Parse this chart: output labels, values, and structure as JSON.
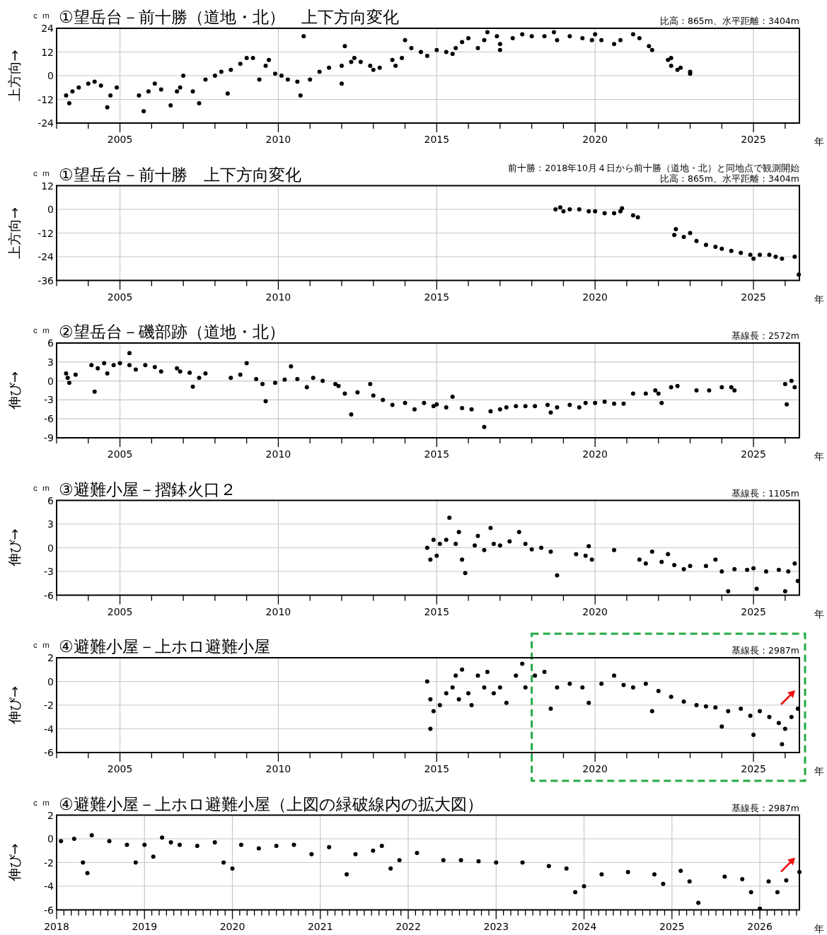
{
  "chart_data": [
    {
      "type": "scatter",
      "title": "①望岳台－前十勝（道地・北）　上下方向変化",
      "ylabel": "上方向→",
      "xlabel": "年",
      "annotations": [
        "ｃｍ",
        "比高：865m、水平距離：3404m"
      ],
      "xlim": [
        2003,
        2026.45
      ],
      "xticks": [
        {
          "value": 2003,
          "label": null
        },
        {
          "value": 2004,
          "label": null
        },
        2005,
        {
          "value": 2006,
          "label": null
        },
        {
          "value": 2007,
          "label": null
        },
        {
          "value": 2008,
          "label": null
        },
        {
          "value": 2009,
          "label": null
        },
        2010,
        {
          "value": 2011,
          "label": null
        },
        {
          "value": 2012,
          "label": null
        },
        {
          "value": 2013,
          "label": null
        },
        {
          "value": 2014,
          "label": null
        },
        2015,
        {
          "value": 2016,
          "label": null
        },
        {
          "value": 2017,
          "label": null
        },
        {
          "value": 2018,
          "label": null
        },
        {
          "value": 2019,
          "label": null
        },
        2020,
        {
          "value": 2021,
          "label": null
        },
        {
          "value": 2022,
          "label": null
        },
        {
          "value": 2023,
          "label": null
        },
        {
          "value": 2024,
          "label": null
        },
        2025,
        {
          "value": 2026,
          "label": null
        }
      ],
      "ylim": [
        -24,
        24
      ],
      "yticks": [
        -24,
        -12,
        0,
        12,
        24
      ],
      "grid": true,
      "marker": "circle",
      "series": [
        {
          "color": "#000000",
          "x": [
            2003.3,
            2003.4,
            2003.5,
            2003.7,
            2004.0,
            2004.2,
            2004.4,
            2004.6,
            2004.7,
            2004.9,
            2005.6,
            2005.75,
            2005.9,
            2006.1,
            2006.3,
            2006.6,
            2006.8,
            2006.9,
            2007.0,
            2007.3,
            2007.5,
            2007.7,
            2008.0,
            2008.2,
            2008.4,
            2008.5,
            2008.8,
            2009.0,
            2009.2,
            2009.4,
            2009.6,
            2009.7,
            2009.9,
            2010.1,
            2010.3,
            2010.6,
            2010.7,
            2010.8,
            2011.0,
            2011.3,
            2011.6,
            2012.0,
            2012.0,
            2012.1,
            2012.3,
            2012.4,
            2012.6,
            2012.9,
            2013.0,
            2013.2,
            2013.6,
            2013.7,
            2013.9,
            2014.0,
            2014.2,
            2014.5,
            2014.7,
            2015.0,
            2015.3,
            2015.5,
            2015.6,
            2015.8,
            2016.0,
            2016.3,
            2016.5,
            2016.6,
            2016.9,
            2017.0,
            2017.0,
            2017.4,
            2017.7,
            2018.0,
            2018.4,
            2018.7,
            2018.8,
            2019.2,
            2019.6,
            2019.9,
            2020.0,
            2020.2,
            2020.6,
            2020.8,
            2021.2,
            2021.4,
            2021.7,
            2021.8,
            2022.3,
            2022.4,
            2022.4,
            2022.6,
            2022.7,
            2023.0,
            2023.0
          ],
          "values": [
            -10,
            -14,
            -8,
            -6,
            -4,
            -3,
            -5,
            -16,
            -10,
            -6,
            -10,
            -18,
            -8,
            -4,
            -7,
            -15,
            -8,
            -6,
            0,
            -8,
            -14,
            -2,
            0,
            2,
            -9,
            3,
            6,
            9,
            9,
            -2,
            5,
            8,
            1,
            0,
            -2,
            -3,
            -10,
            20,
            -2,
            2,
            4,
            5,
            -4,
            15,
            7,
            9,
            7,
            5,
            3,
            4,
            8,
            5,
            9,
            18,
            14,
            12,
            10,
            13,
            12,
            11,
            14,
            17,
            19,
            14,
            18,
            22,
            20,
            16,
            13,
            19,
            21,
            20,
            20,
            22,
            18,
            20,
            19,
            18,
            21,
            18,
            16,
            18,
            21,
            19,
            15,
            13,
            8,
            5,
            9,
            3,
            4,
            2,
            1
          ]
        }
      ]
    },
    {
      "type": "scatter",
      "title": "①望岳台－前十勝　上下方向変化",
      "ylabel": "上方向→",
      "xlabel": "年",
      "annotations": [
        "ｃｍ",
        "前十勝：2018年10月４日から前十勝（道地・北）と同地点で観測開始",
        "比高：865m、水平距離：3404m"
      ],
      "xlim": [
        2003,
        2026.45
      ],
      "xticks": [
        {
          "value": 2003,
          "label": null
        },
        {
          "value": 2004,
          "label": null
        },
        2005,
        {
          "value": 2006,
          "label": null
        },
        {
          "value": 2007,
          "label": null
        },
        {
          "value": 2008,
          "label": null
        },
        {
          "value": 2009,
          "label": null
        },
        2010,
        {
          "value": 2011,
          "label": null
        },
        {
          "value": 2012,
          "label": null
        },
        {
          "value": 2013,
          "label": null
        },
        {
          "value": 2014,
          "label": null
        },
        2015,
        {
          "value": 2016,
          "label": null
        },
        {
          "value": 2017,
          "label": null
        },
        {
          "value": 2018,
          "label": null
        },
        {
          "value": 2019,
          "label": null
        },
        2020,
        {
          "value": 2021,
          "label": null
        },
        {
          "value": 2022,
          "label": null
        },
        {
          "value": 2023,
          "label": null
        },
        {
          "value": 2024,
          "label": null
        },
        2025,
        {
          "value": 2026,
          "label": null
        }
      ],
      "ylim": [
        -36,
        12
      ],
      "yticks": [
        -36,
        -24,
        -12,
        0,
        12
      ],
      "grid": true,
      "marker": "circle",
      "series": [
        {
          "color": "#000000",
          "x": [
            2018.75,
            2018.9,
            2019.0,
            2019.2,
            2019.5,
            2019.8,
            2020.0,
            2020.3,
            2020.6,
            2020.8,
            2020.85,
            2021.2,
            2021.35,
            2022.5,
            2022.55,
            2022.8,
            2023.0,
            2023.2,
            2023.5,
            2023.8,
            2024.0,
            2024.3,
            2024.6,
            2024.9,
            2025.0,
            2025.2,
            2025.5,
            2025.7,
            2025.9,
            2026.3,
            2026.43
          ],
          "values": [
            0,
            1,
            -1,
            0,
            0,
            -1,
            -1,
            -2,
            -2,
            -1,
            0.5,
            -3,
            -4,
            -13,
            -10,
            -14,
            -12,
            -16,
            -18,
            -19,
            -20,
            -21,
            -22,
            -23,
            -25,
            -23,
            -23,
            -24,
            -25,
            -24,
            -33
          ]
        }
      ]
    },
    {
      "type": "scatter",
      "title": "②望岳台－磯部跡（道地・北）",
      "ylabel": "伸び→",
      "xlabel": "年",
      "annotations": [
        "ｃｍ",
        "基線長：2572m"
      ],
      "xlim": [
        2003,
        2026.45
      ],
      "xticks": [
        {
          "value": 2003,
          "label": null
        },
        {
          "value": 2004,
          "label": null
        },
        2005,
        {
          "value": 2006,
          "label": null
        },
        {
          "value": 2007,
          "label": null
        },
        {
          "value": 2008,
          "label": null
        },
        {
          "value": 2009,
          "label": null
        },
        2010,
        {
          "value": 2011,
          "label": null
        },
        {
          "value": 2012,
          "label": null
        },
        {
          "value": 2013,
          "label": null
        },
        {
          "value": 2014,
          "label": null
        },
        2015,
        {
          "value": 2016,
          "label": null
        },
        {
          "value": 2017,
          "label": null
        },
        {
          "value": 2018,
          "label": null
        },
        {
          "value": 2019,
          "label": null
        },
        2020,
        {
          "value": 2021,
          "label": null
        },
        {
          "value": 2022,
          "label": null
        },
        {
          "value": 2023,
          "label": null
        },
        {
          "value": 2024,
          "label": null
        },
        2025,
        {
          "value": 2026,
          "label": null
        }
      ],
      "ylim": [
        -9,
        6
      ],
      "yticks": [
        -9,
        -6,
        -3,
        0,
        3,
        6
      ],
      "grid": true,
      "marker": "circle",
      "series": [
        {
          "color": "#000000",
          "x": [
            2003.3,
            2003.35,
            2003.4,
            2003.6,
            2004.1,
            2004.2,
            2004.3,
            2004.5,
            2004.6,
            2004.8,
            2005.0,
            2005.3,
            2005.3,
            2005.5,
            2005.8,
            2006.1,
            2006.3,
            2006.8,
            2006.9,
            2007.2,
            2007.3,
            2007.5,
            2007.7,
            2008.5,
            2008.8,
            2009.0,
            2009.3,
            2009.5,
            2009.6,
            2009.9,
            2010.2,
            2010.4,
            2010.6,
            2010.9,
            2011.1,
            2011.4,
            2011.8,
            2011.9,
            2012.1,
            2012.3,
            2012.5,
            2012.9,
            2013.0,
            2013.3,
            2013.6,
            2014.0,
            2014.3,
            2014.6,
            2014.9,
            2015.0,
            2015.3,
            2015.5,
            2015.8,
            2016.1,
            2016.5,
            2016.7,
            2017.0,
            2017.2,
            2017.5,
            2017.8,
            2018.1,
            2018.5,
            2018.6,
            2018.8,
            2019.2,
            2019.5,
            2019.7,
            2020.0,
            2020.3,
            2020.6,
            2020.9,
            2021.2,
            2021.6,
            2021.9,
            2022.0,
            2022.1,
            2022.4,
            2022.6,
            2023.2,
            2023.6,
            2024.0,
            2024.3,
            2024.4,
            2026.0,
            2026.05,
            2026.2,
            2026.3
          ],
          "values": [
            1.2,
            0.5,
            -0.3,
            1.0,
            2.5,
            -1.7,
            2.0,
            2.8,
            1.2,
            2.5,
            2.8,
            2.5,
            4.4,
            1.8,
            2.5,
            2.2,
            1.5,
            2.0,
            1.5,
            1.3,
            -0.9,
            0.5,
            1.2,
            0.5,
            1.0,
            2.8,
            0.3,
            -0.5,
            -3.2,
            -0.3,
            0.2,
            2.3,
            0.3,
            -1.0,
            0.5,
            0.0,
            -0.5,
            -0.8,
            -2.0,
            -5.3,
            -1.8,
            -0.5,
            -2.3,
            -3.0,
            -3.8,
            -3.5,
            -4.5,
            -3.5,
            -4.0,
            -3.7,
            -4.2,
            -2.5,
            -4.3,
            -4.5,
            -7.3,
            -4.8,
            -4.5,
            -4.2,
            -4.0,
            -4.0,
            -4.0,
            -3.8,
            -5.0,
            -4.2,
            -3.8,
            -4.2,
            -3.5,
            -3.5,
            -3.3,
            -3.6,
            -3.6,
            -2.0,
            -2.0,
            -1.5,
            -2.0,
            -3.5,
            -1.0,
            -0.8,
            -1.5,
            -1.5,
            -1.0,
            -1.0,
            -1.5,
            -0.5,
            -3.7,
            0.0,
            -1.0
          ]
        }
      ]
    },
    {
      "type": "scatter",
      "title": "③避難小屋－摺鉢火口２",
      "ylabel": "伸び→",
      "xlabel": "年",
      "annotations": [
        "ｃｍ",
        "基線長：1105m"
      ],
      "xlim": [
        2003,
        2026.45
      ],
      "xticks": [
        {
          "value": 2003,
          "label": null
        },
        {
          "value": 2004,
          "label": null
        },
        2005,
        {
          "value": 2006,
          "label": null
        },
        {
          "value": 2007,
          "label": null
        },
        {
          "value": 2008,
          "label": null
        },
        {
          "value": 2009,
          "label": null
        },
        2010,
        {
          "value": 2011,
          "label": null
        },
        {
          "value": 2012,
          "label": null
        },
        {
          "value": 2013,
          "label": null
        },
        {
          "value": 2014,
          "label": null
        },
        2015,
        {
          "value": 2016,
          "label": null
        },
        {
          "value": 2017,
          "label": null
        },
        {
          "value": 2018,
          "label": null
        },
        {
          "value": 2019,
          "label": null
        },
        2020,
        {
          "value": 2021,
          "label": null
        },
        {
          "value": 2022,
          "label": null
        },
        {
          "value": 2023,
          "label": null
        },
        {
          "value": 2024,
          "label": null
        },
        2025,
        {
          "value": 2026,
          "label": null
        }
      ],
      "ylim": [
        -6,
        6
      ],
      "yticks": [
        -6,
        -3,
        0,
        3,
        6
      ],
      "grid": true,
      "marker": "circle",
      "series": [
        {
          "color": "#000000",
          "x": [
            2014.7,
            2014.8,
            2014.9,
            2015.0,
            2015.1,
            2015.3,
            2015.4,
            2015.6,
            2015.7,
            2015.8,
            2015.9,
            2016.2,
            2016.3,
            2016.5,
            2016.7,
            2016.8,
            2017.0,
            2017.3,
            2017.6,
            2017.8,
            2018.0,
            2018.3,
            2018.6,
            2018.8,
            2019.4,
            2019.7,
            2019.8,
            2019.9,
            2020.6,
            2021.4,
            2021.6,
            2021.8,
            2022.1,
            2022.3,
            2022.5,
            2022.8,
            2023.0,
            2023.5,
            2023.8,
            2024.0,
            2024.2,
            2024.4,
            2024.8,
            2025.0,
            2025.1,
            2025.4,
            2025.8,
            2026.0,
            2026.1,
            2026.3,
            2026.4
          ],
          "values": [
            0.0,
            -1.5,
            1.0,
            -1.0,
            0.5,
            1.0,
            3.8,
            0.5,
            2.0,
            -1.5,
            -3.2,
            0.3,
            1.5,
            -0.3,
            2.5,
            0.5,
            0.3,
            0.8,
            2.0,
            0.5,
            -0.2,
            0.0,
            -0.5,
            -3.5,
            -0.8,
            -1.0,
            0.2,
            -1.5,
            -0.3,
            -1.5,
            -2.0,
            -0.5,
            -1.8,
            -0.8,
            -2.2,
            -2.7,
            -2.3,
            -2.3,
            -1.5,
            -3.0,
            -5.5,
            -2.7,
            -2.8,
            -2.6,
            -5.2,
            -3.0,
            -2.8,
            -5.5,
            -3.0,
            -2.0,
            -4.2
          ]
        }
      ]
    },
    {
      "type": "scatter",
      "title": "④避難小屋－上ホロ避難小屋",
      "ylabel": "伸び→",
      "xlabel": "年",
      "annotations": [
        "ｃｍ",
        "基線長：2987m"
      ],
      "xlim": [
        2003,
        2026.45
      ],
      "xticks": [
        {
          "value": 2003,
          "label": null
        },
        {
          "value": 2004,
          "label": null
        },
        2005,
        {
          "value": 2006,
          "label": null
        },
        {
          "value": 2007,
          "label": null
        },
        {
          "value": 2008,
          "label": null
        },
        {
          "value": 2009,
          "label": null
        },
        2010,
        {
          "value": 2011,
          "label": null
        },
        {
          "value": 2012,
          "label": null
        },
        {
          "value": 2013,
          "label": null
        },
        {
          "value": 2014,
          "label": null
        },
        2015,
        {
          "value": 2016,
          "label": null
        },
        {
          "value": 2017,
          "label": null
        },
        {
          "value": 2018,
          "label": null
        },
        {
          "value": 2019,
          "label": null
        },
        2020,
        {
          "value": 2021,
          "label": null
        },
        {
          "value": 2022,
          "label": null
        },
        {
          "value": 2023,
          "label": null
        },
        {
          "value": 2024,
          "label": null
        },
        2025,
        {
          "value": 2026,
          "label": null
        }
      ],
      "ylim": [
        -6,
        2
      ],
      "yticks": [
        -6,
        -4,
        -2,
        0,
        2
      ],
      "grid": true,
      "marker": "circle",
      "series": [
        {
          "color": "#000000",
          "x": [
            2014.7,
            2014.8,
            2014.8,
            2014.9,
            2015.1,
            2015.3,
            2015.5,
            2015.6,
            2015.7,
            2015.8,
            2016.0,
            2016.1,
            2016.3,
            2016.5,
            2016.6,
            2016.8,
            2017.0,
            2017.2,
            2017.5,
            2017.7,
            2017.8,
            2018.1,
            2018.4,
            2018.6,
            2018.8,
            2019.2,
            2019.6,
            2019.8,
            2020.2,
            2020.6,
            2020.9,
            2021.2,
            2021.6,
            2021.8,
            2022.0,
            2022.4,
            2022.8,
            2023.2,
            2023.5,
            2023.8,
            2024.0,
            2024.2,
            2024.6,
            2024.9,
            2025.0,
            2025.2,
            2025.5,
            2025.8,
            2025.9,
            2026.0,
            2026.2,
            2026.4
          ],
          "values": [
            0.0,
            -4.0,
            -1.5,
            -2.5,
            -2.0,
            -1.0,
            -0.5,
            0.5,
            -1.5,
            1.0,
            -1.0,
            -2.0,
            0.5,
            -0.5,
            0.8,
            -1.0,
            -0.5,
            -1.8,
            0.5,
            1.5,
            -0.5,
            0.5,
            0.8,
            -2.3,
            -0.5,
            -0.2,
            -0.5,
            -1.8,
            -0.2,
            0.5,
            -0.3,
            -0.5,
            -0.2,
            -2.5,
            -0.8,
            -1.3,
            -1.7,
            -2.0,
            -2.1,
            -2.2,
            -3.8,
            -2.5,
            -2.3,
            -2.9,
            -4.5,
            -2.5,
            -3.0,
            -3.5,
            -5.3,
            -4.0,
            -3.0,
            -2.3
          ]
        }
      ]
    },
    {
      "type": "scatter",
      "title": "④避難小屋－上ホロ避難小屋（上図の緑破線内の拡大図）",
      "ylabel": "伸び→",
      "xlabel": "年",
      "annotations": [
        "ｃｍ",
        "基線長：2987m"
      ],
      "xlim": [
        2018,
        2026.45
      ],
      "xticks": [
        2018,
        {
          "value": 2018.083,
          "label": null
        },
        {
          "value": 2018.167,
          "label": null
        },
        {
          "value": 2018.25,
          "label": null
        },
        {
          "value": 2018.333,
          "label": null
        },
        {
          "value": 2018.417,
          "label": null
        },
        {
          "value": 2018.5,
          "label": null
        },
        {
          "value": 2018.583,
          "label": null
        },
        {
          "value": 2018.667,
          "label": null
        },
        {
          "value": 2018.75,
          "label": null
        },
        {
          "value": 2018.833,
          "label": null
        },
        {
          "value": 2018.917,
          "label": null
        },
        2019,
        {
          "value": 2019.083,
          "label": null
        },
        {
          "value": 2019.167,
          "label": null
        },
        {
          "value": 2019.25,
          "label": null
        },
        {
          "value": 2019.333,
          "label": null
        },
        {
          "value": 2019.417,
          "label": null
        },
        {
          "value": 2019.5,
          "label": null
        },
        {
          "value": 2019.583,
          "label": null
        },
        {
          "value": 2019.667,
          "label": null
        },
        {
          "value": 2019.75,
          "label": null
        },
        {
          "value": 2019.833,
          "label": null
        },
        {
          "value": 2019.917,
          "label": null
        },
        2020,
        {
          "value": 2020.083,
          "label": null
        },
        {
          "value": 2020.167,
          "label": null
        },
        {
          "value": 2020.25,
          "label": null
        },
        {
          "value": 2020.333,
          "label": null
        },
        {
          "value": 2020.417,
          "label": null
        },
        {
          "value": 2020.5,
          "label": null
        },
        {
          "value": 2020.583,
          "label": null
        },
        {
          "value": 2020.667,
          "label": null
        },
        {
          "value": 2020.75,
          "label": null
        },
        {
          "value": 2020.833,
          "label": null
        },
        {
          "value": 2020.917,
          "label": null
        },
        2021,
        {
          "value": 2021.083,
          "label": null
        },
        {
          "value": 2021.167,
          "label": null
        },
        {
          "value": 2021.25,
          "label": null
        },
        {
          "value": 2021.333,
          "label": null
        },
        {
          "value": 2021.417,
          "label": null
        },
        {
          "value": 2021.5,
          "label": null
        },
        {
          "value": 2021.583,
          "label": null
        },
        {
          "value": 2021.667,
          "label": null
        },
        {
          "value": 2021.75,
          "label": null
        },
        {
          "value": 2021.833,
          "label": null
        },
        {
          "value": 2021.917,
          "label": null
        },
        2022,
        {
          "value": 2022.083,
          "label": null
        },
        {
          "value": 2022.167,
          "label": null
        },
        {
          "value": 2022.25,
          "label": null
        },
        {
          "value": 2022.333,
          "label": null
        },
        {
          "value": 2022.417,
          "label": null
        },
        {
          "value": 2022.5,
          "label": null
        },
        {
          "value": 2022.583,
          "label": null
        },
        {
          "value": 2022.667,
          "label": null
        },
        {
          "value": 2022.75,
          "label": null
        },
        {
          "value": 2022.833,
          "label": null
        },
        {
          "value": 2022.917,
          "label": null
        },
        2023,
        {
          "value": 2023.083,
          "label": null
        },
        {
          "value": 2023.167,
          "label": null
        },
        {
          "value": 2023.25,
          "label": null
        },
        {
          "value": 2023.333,
          "label": null
        },
        {
          "value": 2023.417,
          "label": null
        },
        {
          "value": 2023.5,
          "label": null
        },
        {
          "value": 2023.583,
          "label": null
        },
        {
          "value": 2023.667,
          "label": null
        },
        {
          "value": 2023.75,
          "label": null
        },
        {
          "value": 2023.833,
          "label": null
        },
        {
          "value": 2023.917,
          "label": null
        },
        2024,
        {
          "value": 2024.083,
          "label": null
        },
        {
          "value": 2024.167,
          "label": null
        },
        {
          "value": 2024.25,
          "label": null
        },
        {
          "value": 2024.333,
          "label": null
        },
        {
          "value": 2024.417,
          "label": null
        },
        {
          "value": 2024.5,
          "label": null
        },
        {
          "value": 2024.583,
          "label": null
        },
        {
          "value": 2024.667,
          "label": null
        },
        {
          "value": 2024.75,
          "label": null
        },
        {
          "value": 2024.833,
          "label": null
        },
        {
          "value": 2024.917,
          "label": null
        },
        2025,
        {
          "value": 2025.083,
          "label": null
        },
        {
          "value": 2025.167,
          "label": null
        },
        {
          "value": 2025.25,
          "label": null
        },
        {
          "value": 2025.333,
          "label": null
        },
        {
          "value": 2025.417,
          "label": null
        },
        {
          "value": 2025.5,
          "label": null
        },
        {
          "value": 2025.583,
          "label": null
        },
        {
          "value": 2025.667,
          "label": null
        },
        {
          "value": 2025.75,
          "label": null
        },
        {
          "value": 2025.833,
          "label": null
        },
        {
          "value": 2025.917,
          "label": null
        },
        2026,
        {
          "value": 2026.083,
          "label": null
        },
        {
          "value": 2026.167,
          "label": null
        },
        {
          "value": 2026.25,
          "label": null
        },
        {
          "value": 2026.333,
          "label": null
        },
        {
          "value": 2026.417,
          "label": null
        }
      ],
      "ylim": [
        -6,
        2
      ],
      "yticks": [
        -6,
        -4,
        -2,
        0,
        2
      ],
      "grid": true,
      "marker": "circle",
      "series": [
        {
          "color": "#000000",
          "x": [
            2018.05,
            2018.2,
            2018.3,
            2018.35,
            2018.4,
            2018.6,
            2018.8,
            2018.9,
            2019.0,
            2019.1,
            2019.2,
            2019.3,
            2019.4,
            2019.6,
            2019.8,
            2019.9,
            2020.0,
            2020.1,
            2020.3,
            2020.5,
            2020.7,
            2020.9,
            2021.1,
            2021.3,
            2021.4,
            2021.6,
            2021.7,
            2021.8,
            2021.9,
            2022.1,
            2022.4,
            2022.6,
            2022.8,
            2023.0,
            2023.3,
            2023.6,
            2023.8,
            2023.9,
            2024.0,
            2024.2,
            2024.5,
            2024.8,
            2024.9,
            2025.1,
            2025.2,
            2025.3,
            2025.6,
            2025.8,
            2025.9,
            2026.0,
            2026.1,
            2026.2,
            2026.3,
            2026.45
          ],
          "values": [
            -0.2,
            0.0,
            -2.0,
            -2.9,
            0.3,
            -0.2,
            -0.5,
            -2.0,
            -0.5,
            -1.5,
            0.1,
            -0.3,
            -0.5,
            -0.6,
            -0.3,
            -2.0,
            -2.5,
            -0.5,
            -0.8,
            -0.6,
            -0.5,
            -1.3,
            -0.7,
            -3.0,
            -1.3,
            -1.0,
            -0.6,
            -2.5,
            -1.8,
            -1.2,
            -1.8,
            -1.8,
            -1.9,
            -2.0,
            -2.0,
            -2.3,
            -2.5,
            -4.5,
            -4.0,
            -3.0,
            -2.8,
            -3.0,
            -3.8,
            -2.7,
            -3.6,
            -5.4,
            -3.2,
            -3.4,
            -4.5,
            -5.9,
            -3.6,
            -4.5,
            -3.5,
            -2.8
          ]
        }
      ]
    }
  ]
}
